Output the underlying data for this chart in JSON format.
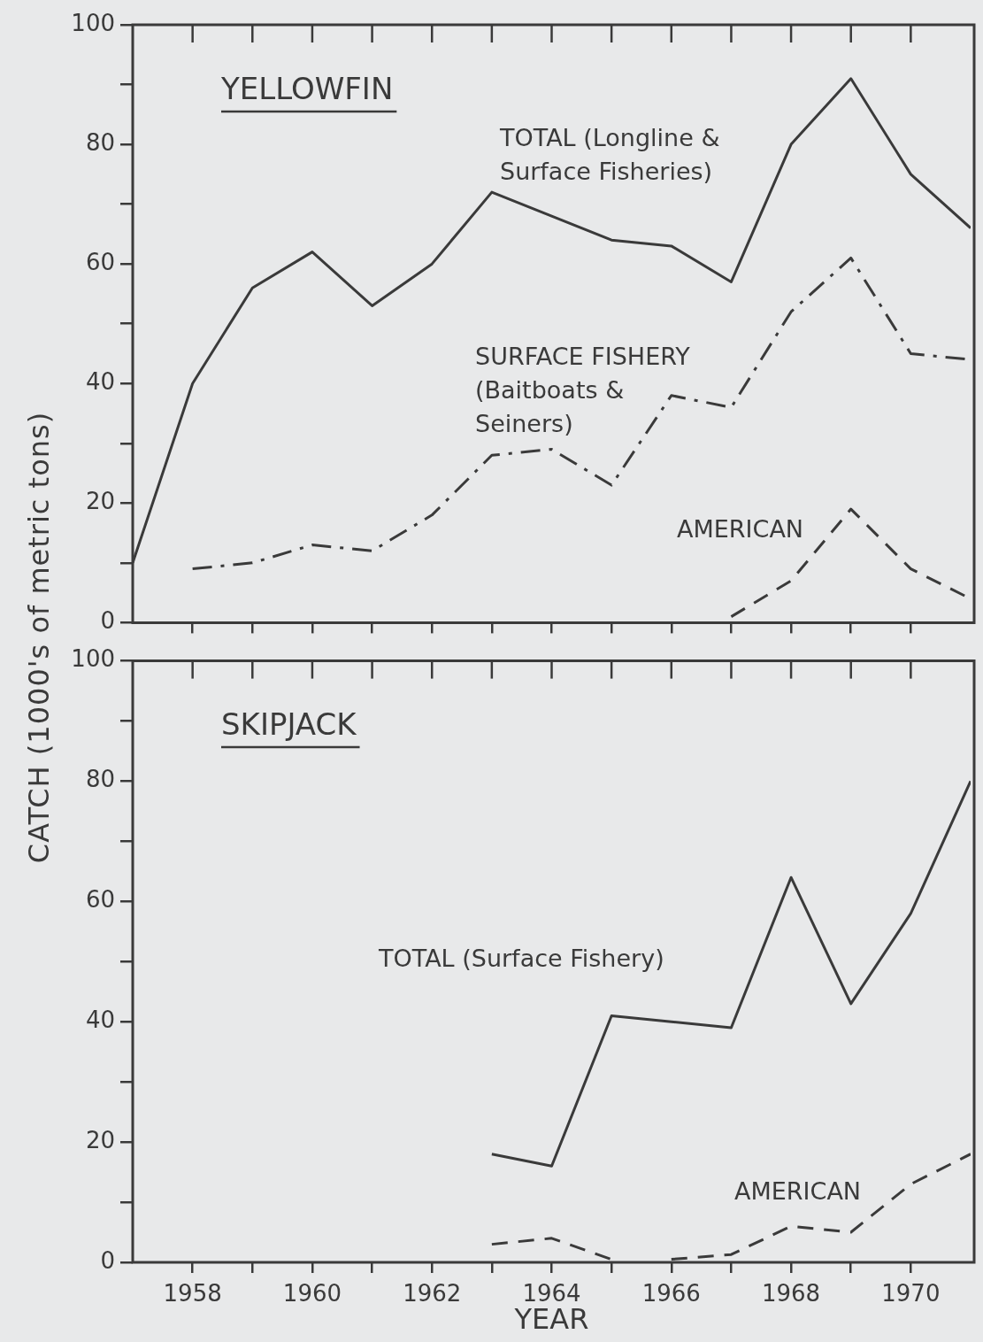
{
  "chart_data": [
    {
      "type": "line",
      "title": "YELLOWFIN",
      "ylabel": "CATCH (1000's of metric tons)",
      "x": [
        1957,
        1958,
        1959,
        1960,
        1961,
        1962,
        1963,
        1964,
        1965,
        1966,
        1967,
        1968,
        1969,
        1970,
        1971
      ],
      "xlim": [
        1957,
        1971
      ],
      "xticks": [
        {
          "value": 1958,
          "label": null
        },
        {
          "value": 1959,
          "label": null
        },
        {
          "value": 1960,
          "label": null
        },
        {
          "value": 1961,
          "label": null
        },
        {
          "value": 1962,
          "label": null
        },
        {
          "value": 1963,
          "label": null
        },
        {
          "value": 1964,
          "label": null
        },
        {
          "value": 1965,
          "label": null
        },
        {
          "value": 1966,
          "label": null
        },
        {
          "value": 1967,
          "label": null
        },
        {
          "value": 1968,
          "label": null
        },
        {
          "value": 1969,
          "label": null
        },
        {
          "value": 1970,
          "label": null
        }
      ],
      "ylim": [
        0,
        100
      ],
      "yticks": [
        0,
        {
          "value": 10,
          "label": null
        },
        20,
        {
          "value": 30,
          "label": null
        },
        40,
        {
          "value": 50,
          "label": null
        },
        60,
        {
          "value": 70,
          "label": null
        },
        80,
        {
          "value": 90,
          "label": null
        },
        100
      ],
      "tick_labels": "y",
      "legend": false,
      "marker": "none",
      "series": [
        {
          "name": "TOTAL (Longline &\nSurface Fisheries)",
          "color": "#3a3a3a",
          "line_style": "solid",
          "values": [
            10,
            40,
            56,
            62,
            53,
            60,
            72,
            68,
            64,
            63,
            57,
            80,
            91,
            75,
            66
          ]
        },
        {
          "name": "SURFACE FISHERY\n(Baitboats &\nSeiners)",
          "color": "#3a3a3a",
          "line_style": "dashdot",
          "values": [
            null,
            9,
            10,
            13,
            12,
            18,
            28,
            29,
            23,
            38,
            36,
            52,
            61,
            45,
            44
          ]
        },
        {
          "name": "AMERICAN",
          "color": "#3a3a3a",
          "line_style": "dashed",
          "values": [
            null,
            null,
            null,
            null,
            null,
            null,
            null,
            null,
            null,
            null,
            1,
            7,
            19,
            9,
            4
          ]
        }
      ]
    },
    {
      "type": "line",
      "title": "SKIPJACK",
      "xlabel": "YEAR",
      "xlim": [
        1957,
        1971
      ],
      "xticks": [
        1958,
        {
          "value": 1959,
          "label": null
        },
        1960,
        {
          "value": 1961,
          "label": null
        },
        1962,
        {
          "value": 1963,
          "label": null
        },
        1964,
        {
          "value": 1965,
          "label": null
        },
        1966,
        {
          "value": 1967,
          "label": null
        },
        1968,
        {
          "value": 1969,
          "label": null
        },
        1970
      ],
      "ylim": [
        0,
        100
      ],
      "yticks": [
        0,
        {
          "value": 10,
          "label": null
        },
        20,
        {
          "value": 30,
          "label": null
        },
        40,
        {
          "value": 50,
          "label": null
        },
        60,
        {
          "value": 70,
          "label": null
        },
        80,
        {
          "value": 90,
          "label": null
        },
        100
      ],
      "legend": false,
      "marker": "none",
      "series": [
        {
          "name": "TOTAL (Surface Fishery)",
          "color": "#3a3a3a",
          "line_style": "solid",
          "x": [
            1963,
            1964,
            1965,
            1966,
            1967,
            1968,
            1969,
            1970,
            1971
          ],
          "values": [
            18,
            16,
            41,
            40,
            39,
            64,
            43,
            58,
            80
          ]
        },
        {
          "name": "AMERICAN",
          "color": "#3a3a3a",
          "line_style": "dashed",
          "x": [
            1963,
            1964,
            1965,
            1965.5,
            1966,
            1967,
            1968,
            1969,
            1970,
            1971
          ],
          "values": [
            3,
            4,
            0.5,
            null,
            0.5,
            1.3,
            6,
            5,
            13,
            18
          ]
        }
      ]
    }
  ]
}
